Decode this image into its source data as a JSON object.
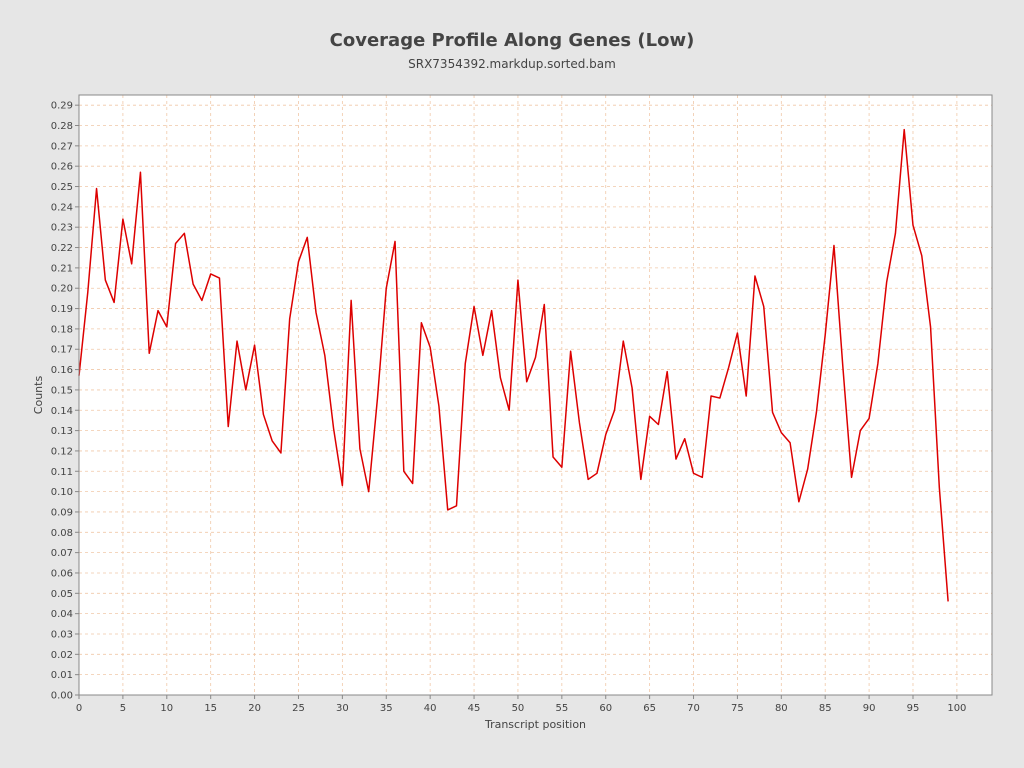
{
  "chart_data": {
    "type": "line",
    "title": "Coverage Profile Along Genes (Low)",
    "subtitle": "SRX7354392.markdup.sorted.bam",
    "xlabel": "Transcript position",
    "ylabel": "Counts",
    "xlim": [
      0,
      104
    ],
    "ylim": [
      0,
      0.295
    ],
    "xticks": [
      0,
      5,
      10,
      15,
      20,
      25,
      30,
      35,
      40,
      45,
      50,
      55,
      60,
      65,
      70,
      75,
      80,
      85,
      90,
      95,
      100
    ],
    "yticks": [
      "0.00",
      "0.01",
      "0.02",
      "0.03",
      "0.04",
      "0.05",
      "0.06",
      "0.07",
      "0.08",
      "0.09",
      "0.10",
      "0.11",
      "0.12",
      "0.13",
      "0.14",
      "0.15",
      "0.16",
      "0.17",
      "0.18",
      "0.19",
      "0.20",
      "0.21",
      "0.22",
      "0.23",
      "0.24",
      "0.25",
      "0.26",
      "0.27",
      "0.28",
      "0.29"
    ],
    "grid": true,
    "colors": {
      "line": "#dd0000",
      "grid": "#f0c8a8",
      "plot_bg": "#ffffff",
      "frame": "#888888"
    },
    "series": [
      {
        "x": [
          0,
          1,
          2,
          3,
          4,
          5,
          6,
          7,
          8,
          9,
          10,
          11,
          12,
          13,
          14,
          15,
          16,
          17,
          18,
          19,
          20,
          21,
          22,
          23,
          24,
          25,
          26,
          27,
          28,
          29,
          30,
          31,
          32,
          33,
          34,
          35,
          36,
          37,
          38,
          39,
          40,
          41,
          42,
          43,
          44,
          45,
          46,
          47,
          48,
          49,
          50,
          51,
          52,
          53,
          54,
          55,
          56,
          57,
          58,
          59,
          60,
          61,
          62,
          63,
          64,
          65,
          66,
          67,
          68,
          69,
          70,
          71,
          72,
          73,
          74,
          75,
          76,
          77,
          78,
          79,
          80,
          81,
          82,
          83,
          84,
          85,
          86,
          87,
          88,
          89,
          90,
          91,
          92,
          93,
          94,
          95,
          96,
          97,
          98,
          99
        ],
        "values": [
          0.157,
          0.198,
          0.249,
          0.204,
          0.193,
          0.234,
          0.212,
          0.257,
          0.168,
          0.189,
          0.181,
          0.222,
          0.227,
          0.202,
          0.194,
          0.207,
          0.205,
          0.132,
          0.174,
          0.15,
          0.172,
          0.138,
          0.125,
          0.119,
          0.185,
          0.213,
          0.225,
          0.188,
          0.167,
          0.131,
          0.103,
          0.194,
          0.121,
          0.1,
          0.146,
          0.2,
          0.223,
          0.11,
          0.104,
          0.183,
          0.171,
          0.142,
          0.091,
          0.093,
          0.163,
          0.191,
          0.167,
          0.189,
          0.156,
          0.14,
          0.204,
          0.154,
          0.166,
          0.192,
          0.117,
          0.112,
          0.169,
          0.134,
          0.106,
          0.109,
          0.128,
          0.14,
          0.174,
          0.151,
          0.106,
          0.137,
          0.133,
          0.159,
          0.116,
          0.126,
          0.109,
          0.107,
          0.147,
          0.146,
          0.161,
          0.178,
          0.147,
          0.206,
          0.191,
          0.139,
          0.129,
          0.124,
          0.095,
          0.111,
          0.139,
          0.177,
          0.221,
          0.162,
          0.107,
          0.13,
          0.136,
          0.163,
          0.203,
          0.227,
          0.278,
          0.231,
          0.216,
          0.181,
          0.102,
          0.046
        ]
      }
    ]
  }
}
